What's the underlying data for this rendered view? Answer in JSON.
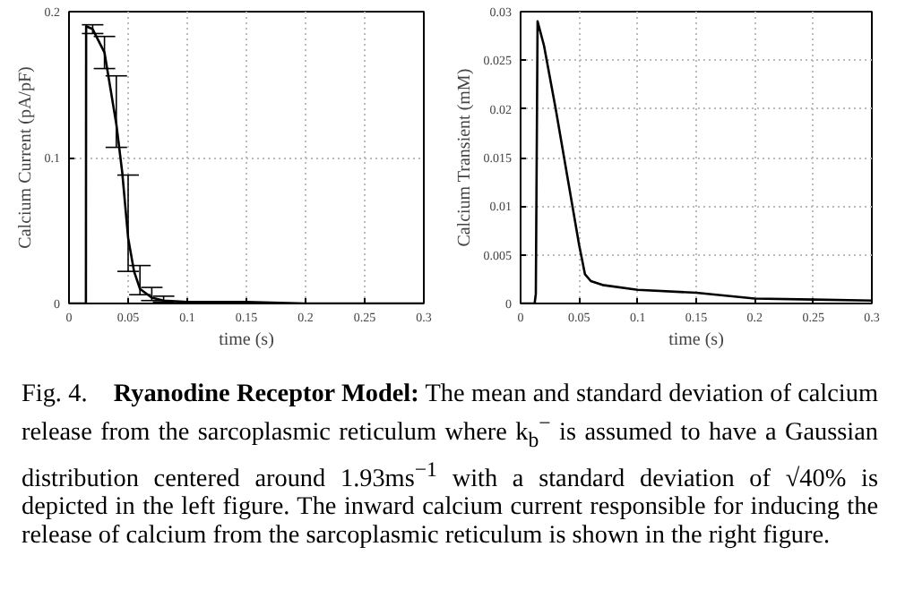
{
  "chart_data": [
    {
      "type": "line",
      "xlabel": "time (s)",
      "ylabel": "Calcium Current (pA/pF)",
      "x": [
        0,
        0.0143,
        0.0145,
        0.02,
        0.03,
        0.04,
        0.045,
        0.05,
        0.055,
        0.06,
        0.07,
        0.08,
        0.1,
        0.15,
        0.2,
        0.3
      ],
      "series": [
        {
          "color": "#000000",
          "values": [
            0,
            0,
            0.19,
            0.188,
            0.172,
            0.123,
            0.09,
            0.045,
            0.022,
            0.01,
            0.004,
            0.002,
            0.001,
            0.001,
            0,
            0
          ],
          "errors": [
            null,
            null,
            null,
            [
              0.185,
              0.191
            ],
            [
              0.161,
              0.183
            ],
            [
              0.107,
              0.156
            ],
            null,
            [
              0.022,
              0.088
            ],
            null,
            [
              0.006,
              0.026
            ],
            [
              0.002,
              0.011
            ],
            [
              0.001,
              0.005
            ],
            null,
            null,
            null,
            null
          ]
        }
      ],
      "xlim": [
        0,
        0.3
      ],
      "ylim": [
        0,
        0.2
      ],
      "xticks": [
        0,
        0.05,
        0.1,
        0.15,
        0.2,
        0.25,
        0.3
      ],
      "yticks": [
        0,
        0.1,
        0.2
      ],
      "grid": true,
      "marker": "none",
      "line_style": "solid",
      "annotations": [
        "Fig. 4.",
        "Ryanodine Receptor Model:",
        "The mean and standard deviation of calcium release from the sarcoplasmic reticulum where k$_{b}$$^{−}$ is assumed to have a Gaussian distribution centered around 1.93ms$^{−1}$ with a standard deviation of √40% is depicted in the left figure. The inward calcium current responsible for inducing the release of calcium from the sarcoplasmic reticulum is shown in the right figure."
      ]
    },
    {
      "type": "line",
      "xlabel": "time (s)",
      "ylabel": "Calcium Transient (mM)",
      "x": [
        0,
        0.012,
        0.013,
        0.0145,
        0.02,
        0.03,
        0.04,
        0.05,
        0.055,
        0.06,
        0.07,
        0.1,
        0.15,
        0.2,
        0.25,
        0.3
      ],
      "series": [
        {
          "color": "#000000",
          "values": [
            0,
            0,
            0.001,
            0.029,
            0.0265,
            0.02,
            0.013,
            0.006,
            0.003,
            0.0023,
            0.0019,
            0.0014,
            0.0011,
            0.0005,
            0.0004,
            0.0003
          ]
        }
      ],
      "xlim": [
        0,
        0.3
      ],
      "ylim": [
        0,
        0.03
      ],
      "xticks": [
        0,
        0.05,
        0.1,
        0.15,
        0.2,
        0.25,
        0.3
      ],
      "yticks": [
        0,
        0.005,
        0.01,
        0.015,
        0.02,
        0.025,
        0.03
      ],
      "grid": true,
      "marker": "none",
      "line_style": "solid"
    }
  ]
}
